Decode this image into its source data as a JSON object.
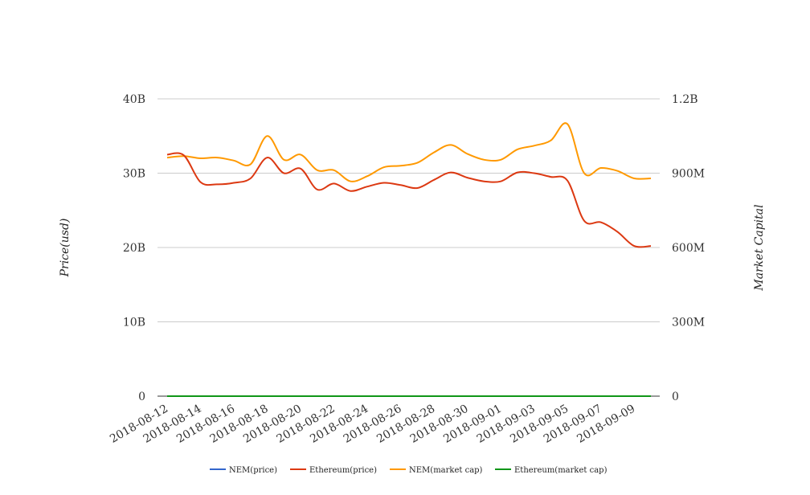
{
  "chart_data": {
    "type": "line",
    "x": [
      "2018-08-12",
      "2018-08-13",
      "2018-08-14",
      "2018-08-15",
      "2018-08-16",
      "2018-08-17",
      "2018-08-18",
      "2018-08-19",
      "2018-08-20",
      "2018-08-21",
      "2018-08-22",
      "2018-08-23",
      "2018-08-24",
      "2018-08-25",
      "2018-08-26",
      "2018-08-27",
      "2018-08-28",
      "2018-08-29",
      "2018-08-30",
      "2018-08-31",
      "2018-09-01",
      "2018-09-02",
      "2018-09-03",
      "2018-09-04",
      "2018-09-05",
      "2018-09-06",
      "2018-09-07",
      "2018-09-08",
      "2018-09-09",
      "2018-09-10"
    ],
    "x_tick_labels": [
      "2018-08-12",
      "2018-08-14",
      "2018-08-16",
      "2018-08-18",
      "2018-08-20",
      "2018-08-22",
      "2018-08-24",
      "2018-08-26",
      "2018-08-28",
      "2018-08-30",
      "2018-09-01",
      "2018-09-03",
      "2018-09-05",
      "2018-09-07",
      "2018-09-09"
    ],
    "y_left": {
      "label": "Price(usd)",
      "ylim": [
        0,
        40000000000
      ],
      "ticks": [
        0,
        10000000000,
        20000000000,
        30000000000,
        40000000000
      ],
      "tick_labels": [
        "0",
        "10B",
        "20B",
        "30B",
        "40B"
      ]
    },
    "y_right": {
      "label": "Market Capital",
      "ylim": [
        0,
        1200000000
      ],
      "ticks": [
        0,
        300000000,
        600000000,
        900000000,
        1200000000
      ],
      "tick_labels": [
        "0",
        "300M",
        "600M",
        "900M",
        "1.2B"
      ]
    },
    "grid": true,
    "legend_position": "bottom",
    "series": [
      {
        "name": "NEM(price)",
        "color": "#3366cc",
        "axis": "left",
        "values": [
          0.1,
          0.1,
          0.1,
          0.1,
          0.1,
          0.1,
          0.1,
          0.1,
          0.1,
          0.1,
          0.1,
          0.1,
          0.1,
          0.1,
          0.1,
          0.1,
          0.1,
          0.1,
          0.1,
          0.1,
          0.1,
          0.1,
          0.1,
          0.1,
          0.1,
          0.1,
          0.1,
          0.1,
          0.1,
          0.1
        ]
      },
      {
        "name": "Ethereum(price)",
        "color": "#dc3912",
        "axis": "left",
        "values": [
          32500000000,
          32400000000,
          28800000000,
          28500000000,
          28700000000,
          29300000000,
          32100000000,
          30000000000,
          30600000000,
          27800000000,
          28600000000,
          27600000000,
          28200000000,
          28700000000,
          28400000000,
          28000000000,
          29100000000,
          30100000000,
          29400000000,
          28900000000,
          28900000000,
          30100000000,
          30000000000,
          29500000000,
          29000000000,
          23600000000,
          23400000000,
          22100000000,
          20200000000,
          20200000000
        ]
      },
      {
        "name": "NEM(market cap)",
        "color": "#ff9900",
        "axis": "right",
        "values": [
          963000000,
          969000000,
          960000000,
          963000000,
          951000000,
          936000000,
          1050000000,
          954000000,
          975000000,
          912000000,
          912000000,
          867000000,
          888000000,
          924000000,
          930000000,
          942000000,
          984000000,
          1014000000,
          978000000,
          954000000,
          954000000,
          996000000,
          1011000000,
          1032000000,
          1098000000,
          900000000,
          921000000,
          909000000,
          879000000,
          879000000
        ]
      },
      {
        "name": "Ethereum(market cap)",
        "color": "#109618",
        "axis": "right",
        "values": [
          0.1,
          0.1,
          0.1,
          0.1,
          0.1,
          0.1,
          0.1,
          0.1,
          0.1,
          0.1,
          0.1,
          0.1,
          0.1,
          0.1,
          0.1,
          0.1,
          0.1,
          0.1,
          0.1,
          0.1,
          0.1,
          0.1,
          0.1,
          0.1,
          0.1,
          0.1,
          0.1,
          0.1,
          0.1,
          0.1
        ]
      }
    ]
  }
}
